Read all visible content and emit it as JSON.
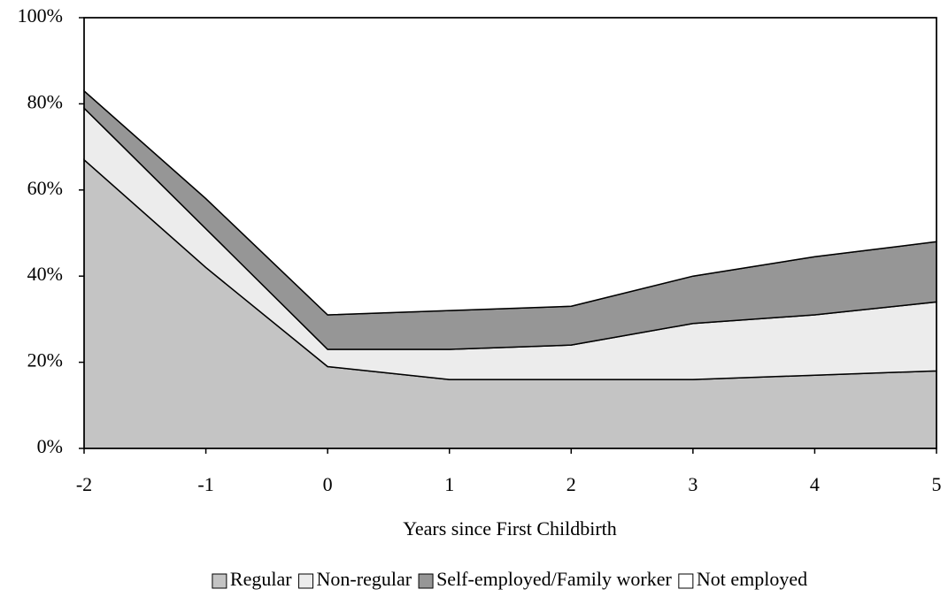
{
  "chart_data": {
    "type": "stacked_area",
    "x": [
      -2,
      -1,
      0,
      1,
      2,
      3,
      4,
      5
    ],
    "xlim": [
      -2,
      5
    ],
    "xticks": [
      -2,
      -1,
      0,
      1,
      2,
      3,
      4,
      5
    ],
    "ylim": [
      0,
      100
    ],
    "yticks": [
      {
        "value": 0,
        "label": "0%"
      },
      {
        "value": 20,
        "label": "20%"
      },
      {
        "value": 40,
        "label": "40%"
      },
      {
        "value": 60,
        "label": "60%"
      },
      {
        "value": 80,
        "label": "80%"
      },
      {
        "value": 100,
        "label": "100%"
      }
    ],
    "x_label": "Years since First Childbirth",
    "legend": "bottom",
    "series": [
      {
        "name": "Regular",
        "color": "#c4c4c4",
        "values": [
          67,
          42,
          19,
          16,
          16,
          16,
          17,
          18
        ]
      },
      {
        "name": "Non-regular",
        "color": "#ececec",
        "values": [
          12,
          9,
          4,
          7,
          8,
          13,
          14,
          16
        ]
      },
      {
        "name": "Self-employed/Family worker",
        "color": "#969696",
        "values": [
          4,
          7,
          8,
          9,
          9,
          11,
          13.5,
          14
        ]
      },
      {
        "name": "Not employed",
        "color": "#ffffff",
        "values": [
          17,
          42,
          69,
          68,
          67,
          60,
          55.5,
          52
        ]
      }
    ]
  }
}
